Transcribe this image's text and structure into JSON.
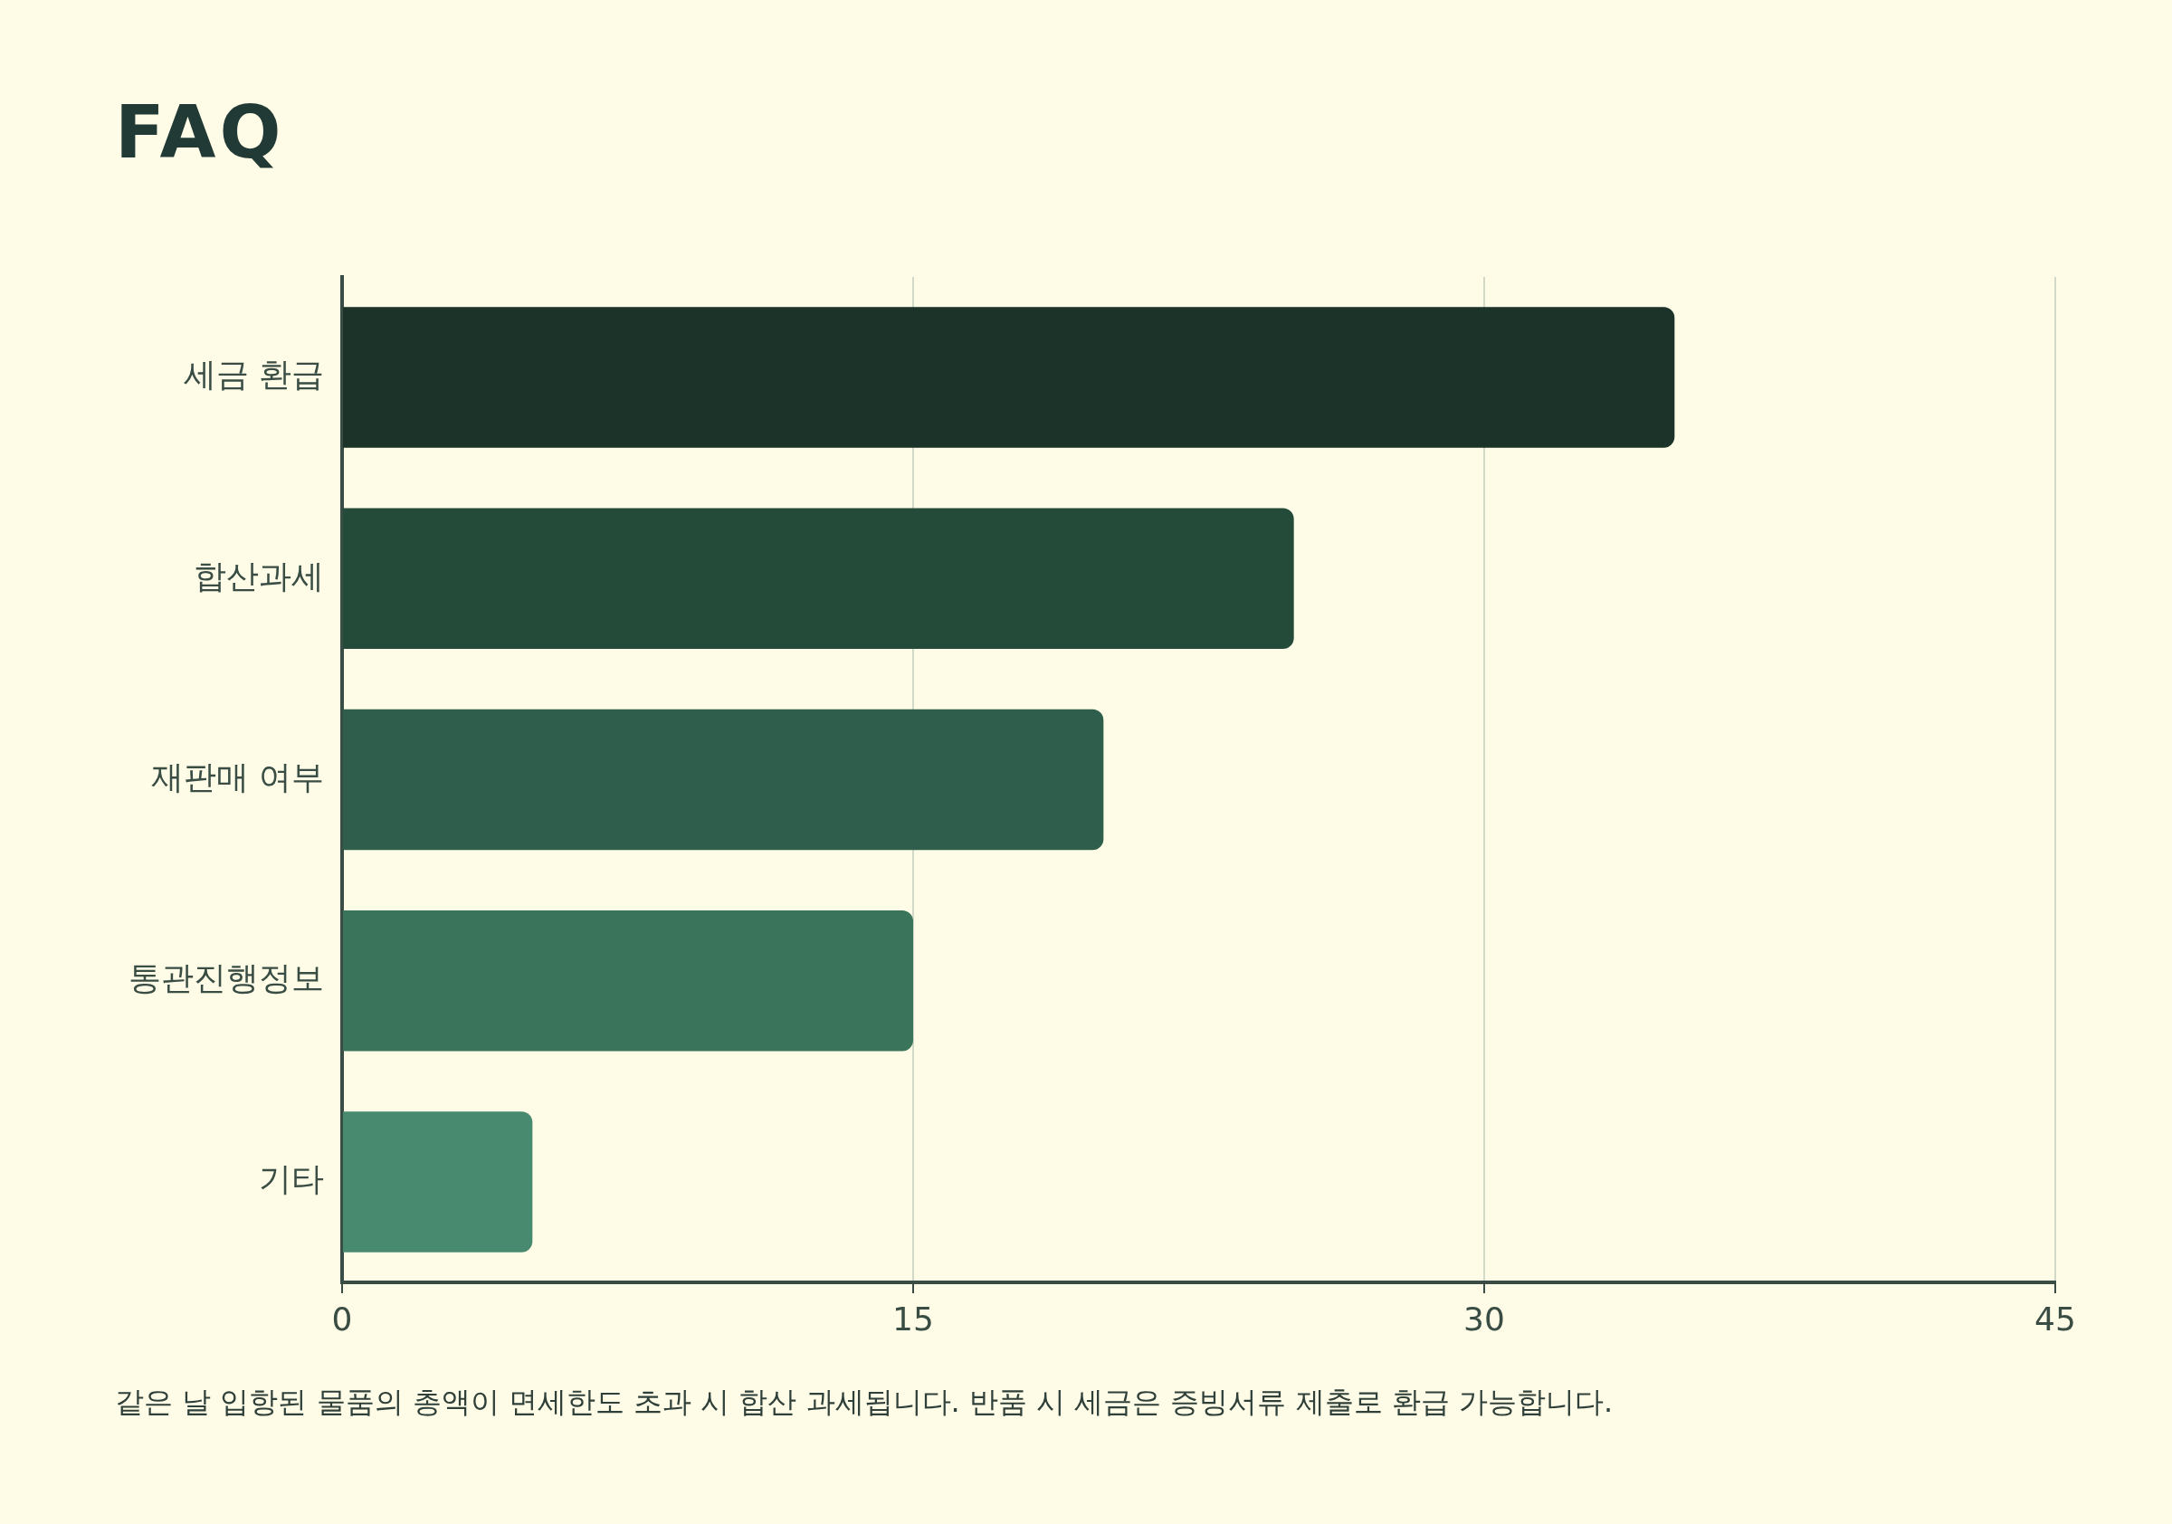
{
  "chart_data": {
    "type": "bar",
    "orientation": "horizontal",
    "title": "FAQ",
    "categories": [
      "세금 환급",
      "합산과세",
      "재판매 여부",
      "통관진행정보",
      "기타"
    ],
    "values": [
      35,
      25,
      20,
      15,
      5
    ],
    "colors": [
      "#1b3329",
      "#244a3a",
      "#2f5f4c",
      "#3a755b",
      "#488a6f"
    ],
    "xlim": [
      0,
      45
    ],
    "xticks": [
      0,
      15,
      30,
      45
    ],
    "grid": "x",
    "legend": false,
    "annotations": [
      "같은 날 입항된 물품의 총액이 면세한도 초과 시 합산 과세됩니다. 반품 시 세금은 증빙서류 제출로 환급 가능합니다."
    ]
  }
}
